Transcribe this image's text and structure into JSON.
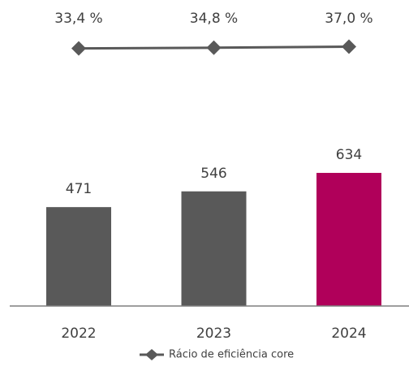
{
  "chart_data": {
    "type": "bar",
    "categories": [
      "2022",
      "2023",
      "2024"
    ],
    "ylim": [
      0,
      1380
    ],
    "y2lim": [
      -500,
      100
    ],
    "series": [
      {
        "type": "bar",
        "colors": [
          "#595959",
          "#595959",
          "#b0005a"
        ],
        "values": [
          471,
          546,
          634
        ]
      },
      {
        "type": "line",
        "name": "Rácio de eficiência core",
        "color": "#595959",
        "axis": "y2",
        "values": [
          33.4,
          34.8,
          37.0
        ],
        "value_labels": [
          "33,4 %",
          "34,8 %",
          "37,0 %"
        ]
      }
    ]
  }
}
